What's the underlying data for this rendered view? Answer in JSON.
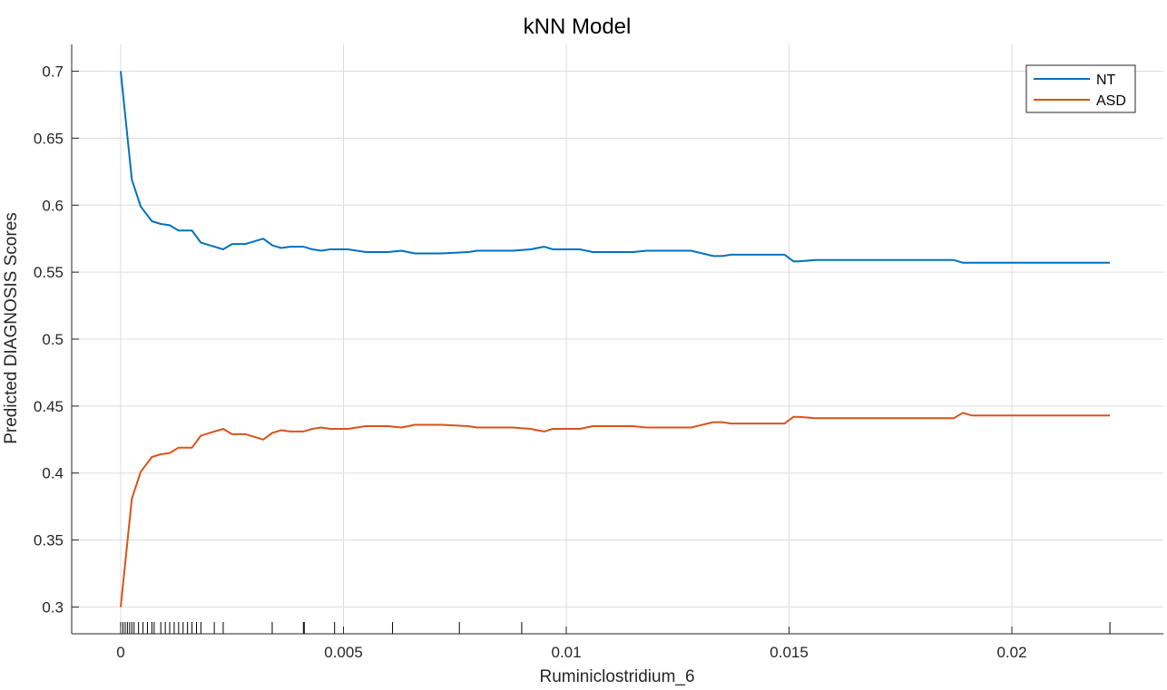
{
  "chart_data": {
    "type": "line",
    "title": "kNN Model",
    "xlabel": "Ruminiclostridium_6",
    "ylabel": "Predicted DIAGNOSIS Scores",
    "xlim": [
      -0.0011,
      0.0234
    ],
    "ylim": [
      0.28,
      0.72
    ],
    "x_ticks": [
      0,
      0.005,
      0.01,
      0.015,
      0.02
    ],
    "x_tick_labels": [
      "0",
      "0.005",
      "0.01",
      "0.015",
      "0.02"
    ],
    "y_ticks": [
      0.3,
      0.35,
      0.4,
      0.45,
      0.5,
      0.55,
      0.6,
      0.65,
      0.7
    ],
    "y_tick_labels": [
      "0.3",
      "0.35",
      "0.4",
      "0.45",
      "0.5",
      "0.55",
      "0.6",
      "0.65",
      "0.7"
    ],
    "grid": true,
    "legend_position": "top-right",
    "series": [
      {
        "name": "NT",
        "color": "#0072BD",
        "x": [
          0,
          0.00025,
          0.00045,
          0.0007,
          0.0009,
          0.0011,
          0.0013,
          0.0016,
          0.0018,
          0.002,
          0.0022,
          0.0023,
          0.0025,
          0.0028,
          0.003,
          0.0032,
          0.0034,
          0.0036,
          0.0038,
          0.0041,
          0.0043,
          0.0045,
          0.0047,
          0.0049,
          0.0051,
          0.0053,
          0.0055,
          0.006,
          0.0063,
          0.0066,
          0.0068,
          0.0072,
          0.0078,
          0.008,
          0.0084,
          0.0088,
          0.0092,
          0.0095,
          0.0097,
          0.0099,
          0.0103,
          0.0106,
          0.011,
          0.0115,
          0.0118,
          0.0122,
          0.0128,
          0.0133,
          0.0135,
          0.0137,
          0.0142,
          0.0148,
          0.0149,
          0.0151,
          0.0152,
          0.0156,
          0.016,
          0.0165,
          0.017,
          0.0175,
          0.0181,
          0.0187,
          0.0189,
          0.0191,
          0.0196,
          0.0205,
          0.0215,
          0.0222
        ],
        "y": [
          0.7,
          0.619,
          0.599,
          0.588,
          0.586,
          0.585,
          0.581,
          0.581,
          0.572,
          0.57,
          0.568,
          0.567,
          0.571,
          0.571,
          0.573,
          0.575,
          0.57,
          0.568,
          0.569,
          0.569,
          0.567,
          0.566,
          0.567,
          0.567,
          0.567,
          0.566,
          0.565,
          0.565,
          0.566,
          0.564,
          0.564,
          0.564,
          0.565,
          0.566,
          0.566,
          0.566,
          0.567,
          0.569,
          0.567,
          0.567,
          0.567,
          0.565,
          0.565,
          0.565,
          0.566,
          0.566,
          0.566,
          0.562,
          0.562,
          0.563,
          0.563,
          0.563,
          0.563,
          0.558,
          0.558,
          0.559,
          0.559,
          0.559,
          0.559,
          0.559,
          0.559,
          0.559,
          0.557,
          0.557,
          0.557,
          0.557,
          0.557,
          0.557
        ]
      },
      {
        "name": "ASD",
        "color": "#D95319",
        "x": [
          0,
          0.00025,
          0.00045,
          0.0007,
          0.0009,
          0.0011,
          0.0013,
          0.0016,
          0.0018,
          0.002,
          0.0022,
          0.0023,
          0.0025,
          0.0028,
          0.003,
          0.0032,
          0.0034,
          0.0036,
          0.0038,
          0.0041,
          0.0043,
          0.0045,
          0.0047,
          0.0049,
          0.0051,
          0.0053,
          0.0055,
          0.006,
          0.0063,
          0.0066,
          0.0068,
          0.0072,
          0.0078,
          0.008,
          0.0084,
          0.0088,
          0.0092,
          0.0095,
          0.0097,
          0.0099,
          0.0103,
          0.0106,
          0.011,
          0.0115,
          0.0118,
          0.0122,
          0.0128,
          0.0133,
          0.0135,
          0.0137,
          0.0142,
          0.0148,
          0.0149,
          0.0151,
          0.0152,
          0.0156,
          0.016,
          0.0165,
          0.017,
          0.0175,
          0.0181,
          0.0187,
          0.0189,
          0.0191,
          0.0196,
          0.0205,
          0.0215,
          0.0222
        ],
        "y": [
          0.3,
          0.381,
          0.401,
          0.412,
          0.414,
          0.415,
          0.419,
          0.419,
          0.428,
          0.43,
          0.432,
          0.433,
          0.429,
          0.429,
          0.427,
          0.425,
          0.43,
          0.432,
          0.431,
          0.431,
          0.433,
          0.434,
          0.433,
          0.433,
          0.433,
          0.434,
          0.435,
          0.435,
          0.434,
          0.436,
          0.436,
          0.436,
          0.435,
          0.434,
          0.434,
          0.434,
          0.433,
          0.431,
          0.433,
          0.433,
          0.433,
          0.435,
          0.435,
          0.435,
          0.434,
          0.434,
          0.434,
          0.438,
          0.438,
          0.437,
          0.437,
          0.437,
          0.437,
          0.442,
          0.442,
          0.441,
          0.441,
          0.441,
          0.441,
          0.441,
          0.441,
          0.441,
          0.445,
          0.443,
          0.443,
          0.443,
          0.443,
          0.443
        ]
      }
    ],
    "rug_x": [
      0,
      5e-05,
      0.0001,
      0.00015,
      0.0002,
      0.00025,
      0.0003,
      0.0004,
      0.0005,
      0.0006,
      0.0007,
      0.00075,
      0.0009,
      0.001,
      0.0011,
      0.0012,
      0.0013,
      0.0014,
      0.0015,
      0.0016,
      0.0017,
      0.0018,
      0.0021,
      0.0023,
      0.0034,
      0.0041,
      0.00412,
      0.0048,
      0.0061,
      0.0076,
      0.009,
      0.0222
    ]
  }
}
